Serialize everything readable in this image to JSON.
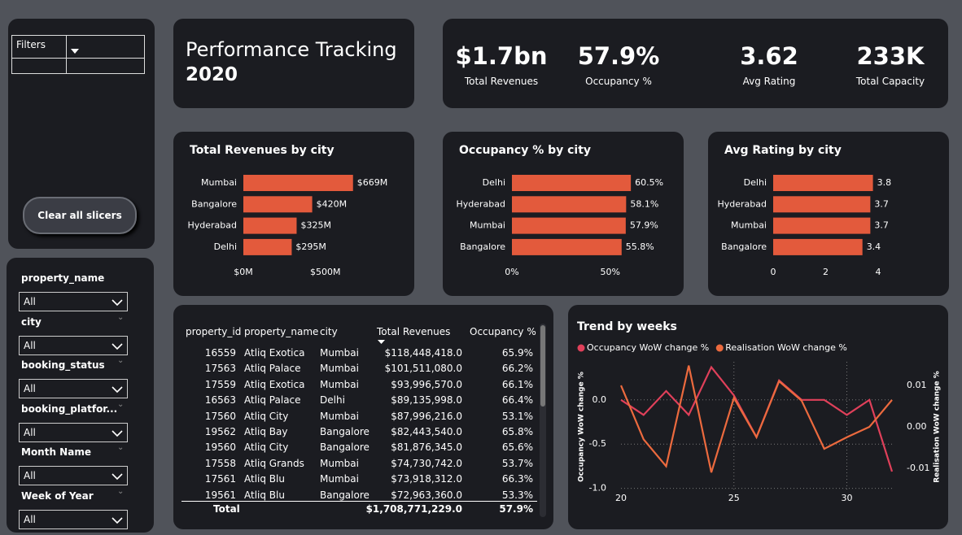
{
  "filters": {
    "label": "Filters",
    "clear_button": "Clear all slicers"
  },
  "header": {
    "title": "Performance Tracking",
    "year": "2020"
  },
  "kpis": [
    {
      "value": "$1.7bn",
      "label": "Total Revenues"
    },
    {
      "value": "57.9%",
      "label": "Occupancy %"
    },
    {
      "value": "3.62",
      "label": "Avg Rating"
    },
    {
      "value": "233K",
      "label": "Total Capacity"
    }
  ],
  "slicers": [
    {
      "label": "property_name",
      "value": "All"
    },
    {
      "label": "city",
      "value": "All"
    },
    {
      "label": "booking_status",
      "value": "All"
    },
    {
      "label": "booking_platfor...",
      "value": "All"
    },
    {
      "label": "Month Name",
      "value": "All"
    },
    {
      "label": "Week of Year",
      "value": "All"
    }
  ],
  "table": {
    "columns": [
      "property_id",
      "property_name",
      "city",
      "Total Revenues",
      "Occupancy %"
    ],
    "rows": [
      [
        "16559",
        "Atliq Exotica",
        "Mumbai",
        "$118,448,418.0",
        "65.9%"
      ],
      [
        "17563",
        "Atliq Palace",
        "Mumbai",
        "$101,511,080.0",
        "66.2%"
      ],
      [
        "17559",
        "Atliq Exotica",
        "Mumbai",
        "$93,996,570.0",
        "66.1%"
      ],
      [
        "16563",
        "Atliq Palace",
        "Delhi",
        "$89,135,998.0",
        "66.4%"
      ],
      [
        "17560",
        "Atliq City",
        "Mumbai",
        "$87,996,216.0",
        "53.1%"
      ],
      [
        "19562",
        "Atliq Bay",
        "Bangalore",
        "$82,443,540.0",
        "65.8%"
      ],
      [
        "19560",
        "Atliq City",
        "Bangalore",
        "$81,876,345.0",
        "65.6%"
      ],
      [
        "17558",
        "Atliq Grands",
        "Mumbai",
        "$74,730,742.0",
        "53.7%"
      ],
      [
        "17561",
        "Atliq Blu",
        "Mumbai",
        "$73,918,312.0",
        "66.3%"
      ],
      [
        "19561",
        "Atliq Blu",
        "Bangalore",
        "$72,963,360.0",
        "53.3%"
      ]
    ],
    "total": {
      "label": "Total",
      "revenue": "$1,708,771,229.0",
      "occupancy": "57.9%"
    }
  },
  "chart_data": [
    {
      "type": "hbar",
      "title": "Total Revenues by city",
      "categories": [
        "Mumbai",
        "Bangalore",
        "Hyderabad",
        "Delhi"
      ],
      "values": [
        669000000,
        420000000,
        325000000,
        295000000
      ],
      "value_labels": [
        "$669M",
        "$420M",
        "$325M",
        "$295M"
      ],
      "color": "#e35a3c",
      "xlim": [
        0,
        700000000
      ],
      "xticks": [
        {
          "value": 0,
          "label": "$0M"
        },
        {
          "value": 500000000,
          "label": "$500M"
        }
      ]
    },
    {
      "type": "hbar",
      "title": "Occupancy % by city",
      "categories": [
        "Delhi",
        "Hyderabad",
        "Mumbai",
        "Bangalore"
      ],
      "values": [
        60.5,
        58.1,
        57.9,
        55.8
      ],
      "value_labels": [
        "60.5%",
        "58.1%",
        "57.9%",
        "55.8%"
      ],
      "color": "#e35a3c",
      "xlim": [
        0,
        65
      ],
      "xticks": [
        {
          "value": 0,
          "label": "0%"
        },
        {
          "value": 50,
          "label": "50%"
        }
      ]
    },
    {
      "type": "hbar",
      "title": "Avg Rating by city",
      "categories": [
        "Delhi",
        "Hyderabad",
        "Mumbai",
        "Bangalore"
      ],
      "values": [
        3.8,
        3.7,
        3.7,
        3.4
      ],
      "color": "#e35a3c",
      "xlim": [
        0,
        4.2
      ],
      "xticks": [
        0,
        2,
        4
      ]
    },
    {
      "type": "line",
      "title": "Trend by weeks",
      "x": [
        20,
        21,
        22,
        23,
        24,
        25,
        26,
        27,
        28,
        29,
        30,
        31,
        32
      ],
      "series": [
        {
          "name": "Occupancy WoW change %",
          "color": "#e0405a",
          "values": [
            0.0,
            -0.17,
            0.1,
            -0.17,
            0.37,
            0.05,
            -0.42,
            0.22,
            0.0,
            0.0,
            -0.17,
            0.0,
            -0.81
          ]
        },
        {
          "name": "Realisation WoW change %",
          "color": "#ec6a3e",
          "axis": "y2",
          "values": [
            0.01,
            -0.003,
            -0.0095,
            0.0148,
            -0.011,
            0.007,
            -0.0025,
            0.011,
            0.0063,
            -0.0053,
            -0.0025,
            0.0,
            0.0065
          ]
        }
      ],
      "ylabel": "Occupancy WoW change %",
      "y2label": "Realisation WoW change %",
      "xlim": [
        20,
        32
      ],
      "xticks": [
        20,
        25,
        30
      ],
      "ylim": [
        -1.04,
        0.43
      ],
      "yticks": [
        {
          "value": -1,
          "label": "-1.0"
        },
        -0.5,
        {
          "value": 0,
          "label": "0.0"
        }
      ],
      "y2lim": [
        -0.0157,
        0.0157
      ],
      "y2ticks": [
        -0.01,
        {
          "value": 0,
          "label": "0.00"
        },
        0.01
      ],
      "grid": true,
      "legend": "top-left"
    }
  ]
}
